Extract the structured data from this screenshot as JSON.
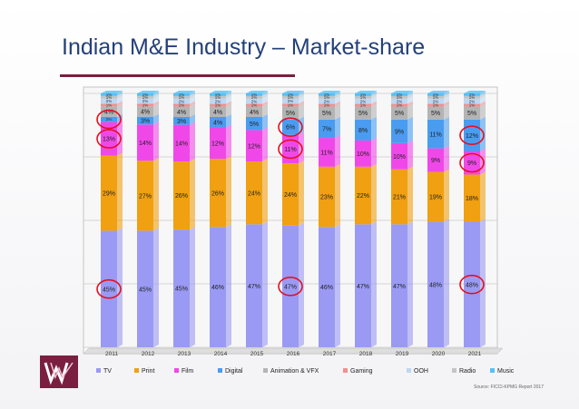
{
  "slide": {
    "title": "Indian M&E Industry – Market-share",
    "source": "Source: FICCI-KPMG Report 2017"
  },
  "colors": {
    "TV": "#9a9af4",
    "Print": "#f0a010",
    "Film": "#f048e8",
    "Digital": "#4a9cf0",
    "Animation & VFX": "#b4b4b4",
    "Gaming": "#f09090",
    "OOH": "#bcd8f4",
    "Radio": "#c4c4c4",
    "Music": "#58c0f4",
    "highlight": "#e41020",
    "title": "#24407a",
    "logo": "#7a1f3f"
  },
  "chart_data": {
    "type": "bar",
    "stacked": true,
    "percent": true,
    "title": "",
    "xlabel": "",
    "ylabel": "",
    "ylim": [
      0,
      100
    ],
    "legend_position": "bottom",
    "categories": [
      "2011",
      "2012",
      "2013",
      "2014",
      "2015",
      "2016",
      "2017",
      "2018",
      "2019",
      "2020",
      "2021"
    ],
    "series": [
      {
        "name": "TV",
        "values": [
          45,
          45,
          45,
          46,
          47,
          47,
          46,
          47,
          47,
          48,
          48
        ],
        "labels": [
          "45%",
          "45%",
          "45%",
          "46%",
          "47%",
          "47%",
          "46%",
          "47%",
          "47%",
          "48%",
          "48%"
        ]
      },
      {
        "name": "Print",
        "values": [
          29,
          27,
          26,
          26,
          24,
          24,
          23,
          22,
          21,
          19,
          18
        ],
        "labels": [
          "29%",
          "27%",
          "26%",
          "26%",
          "24%",
          "24%",
          "23%",
          "22%",
          "21%",
          "19%",
          "18%"
        ]
      },
      {
        "name": "Film",
        "values": [
          13,
          14,
          14,
          12,
          12,
          11,
          11,
          10,
          10,
          9,
          9
        ],
        "labels": [
          "13%",
          "14%",
          "14%",
          "12%",
          "12%",
          "11%",
          "11%",
          "10%",
          "10%",
          "9%",
          "9%"
        ]
      },
      {
        "name": "Digital",
        "values": [
          2,
          3,
          3,
          4,
          5,
          6,
          7,
          8,
          9,
          11,
          12
        ],
        "labels": [
          "2%",
          "3%",
          "3%",
          "4%",
          "5%",
          "6%",
          "7%",
          "8%",
          "9%",
          "11%",
          "12%"
        ]
      },
      {
        "name": "Animation & VFX",
        "values": [
          4,
          4,
          4,
          4,
          4,
          5,
          5,
          5,
          5,
          5,
          5
        ],
        "labels": [
          "4%",
          "4%",
          "4%",
          "4%",
          "4%",
          "5%",
          "5%",
          "5%",
          "5%",
          "5%",
          "5%"
        ]
      },
      {
        "name": "Gaming",
        "values": [
          1,
          1,
          1,
          1,
          1,
          1,
          1,
          1,
          1,
          1,
          1
        ],
        "labels": [
          "1%",
          "1%",
          "1%",
          "1%",
          "1%",
          "1%",
          "1%",
          "1%",
          "1%",
          "1%",
          "1%"
        ]
      },
      {
        "name": "OOH",
        "values": [
          2,
          2,
          2,
          2,
          2,
          2,
          2,
          2,
          2,
          2,
          2
        ],
        "labels": [
          "2%",
          "2%",
          "2%",
          "2%",
          "2%",
          "2%",
          "2%",
          "2%",
          "2%",
          "2%",
          "2%"
        ]
      },
      {
        "name": "Radio",
        "values": [
          1,
          1,
          1,
          1,
          1,
          1,
          1,
          1,
          1,
          1,
          1
        ],
        "labels": [
          "1%",
          "1%",
          "1%",
          "1%",
          "1%",
          "1%",
          "1%",
          "1%",
          "1%",
          "1%",
          "1%"
        ]
      },
      {
        "name": "Music",
        "values": [
          1,
          1,
          1,
          1,
          1,
          1,
          1,
          1,
          1,
          1,
          1
        ],
        "labels": [
          "1%",
          "1%",
          "1%",
          "1%",
          "1%",
          "1%",
          "1%",
          "1%",
          "1%",
          "1%",
          "1%"
        ]
      }
    ],
    "highlighted": [
      {
        "series": "TV",
        "category": "2011"
      },
      {
        "series": "TV",
        "category": "2016"
      },
      {
        "series": "TV",
        "category": "2021"
      },
      {
        "series": "Film",
        "category": "2011"
      },
      {
        "series": "Film",
        "category": "2016"
      },
      {
        "series": "Film",
        "category": "2021"
      },
      {
        "series": "Digital",
        "category": "2011"
      },
      {
        "series": "Digital",
        "category": "2016"
      },
      {
        "series": "Digital",
        "category": "2021"
      }
    ]
  }
}
